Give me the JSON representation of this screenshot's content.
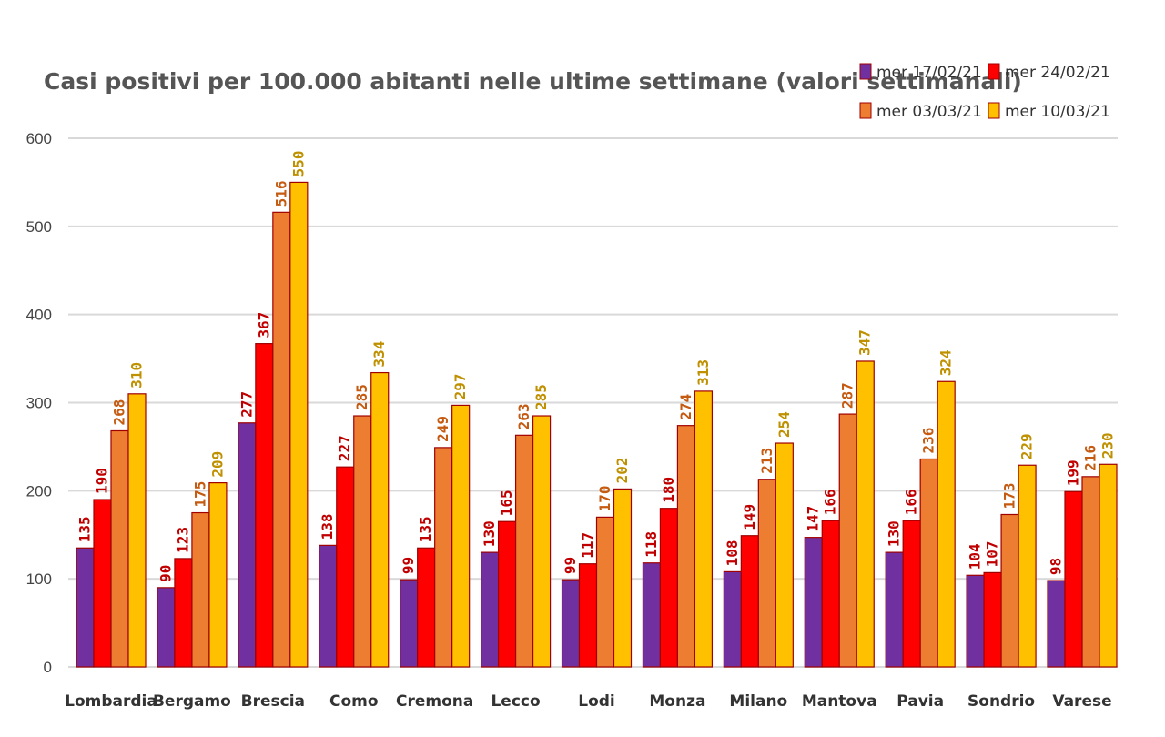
{
  "chart_data": {
    "type": "bar",
    "title": "Casi positivi  per 100.000 abitanti  nelle ultime settimane (valori settimanali)",
    "xlabel": "",
    "ylabel": "",
    "ylim": [
      0,
      600
    ],
    "yticks": [
      0,
      100,
      200,
      300,
      400,
      500,
      600
    ],
    "grid": true,
    "legend_position": "top-right",
    "categories": [
      "Lombardia",
      "Bergamo",
      "Brescia",
      "Como",
      "Cremona",
      "Lecco",
      "Lodi",
      "Monza",
      "Milano",
      "Mantova",
      "Pavia",
      "Sondrio",
      "Varese"
    ],
    "series": [
      {
        "name": "mer 17/02/21",
        "color": "#7030A0",
        "label_color": "#C00000",
        "values": [
          135,
          90,
          277,
          138,
          99,
          130,
          99,
          118,
          108,
          147,
          130,
          104,
          98
        ]
      },
      {
        "name": "mer 24/02/21",
        "color": "#FF0000",
        "label_color": "#C00000",
        "values": [
          190,
          123,
          367,
          227,
          135,
          165,
          117,
          180,
          149,
          166,
          166,
          107,
          199
        ]
      },
      {
        "name": "mer 03/03/21",
        "color": "#ED7D31",
        "label_color": "#C55A11",
        "values": [
          268,
          175,
          516,
          285,
          249,
          263,
          170,
          274,
          213,
          287,
          236,
          173,
          216
        ]
      },
      {
        "name": "mer 10/03/21",
        "color": "#FFC000",
        "label_color": "#BF9000",
        "values": [
          310,
          209,
          550,
          334,
          297,
          285,
          202,
          313,
          254,
          347,
          324,
          229,
          230
        ]
      }
    ]
  }
}
